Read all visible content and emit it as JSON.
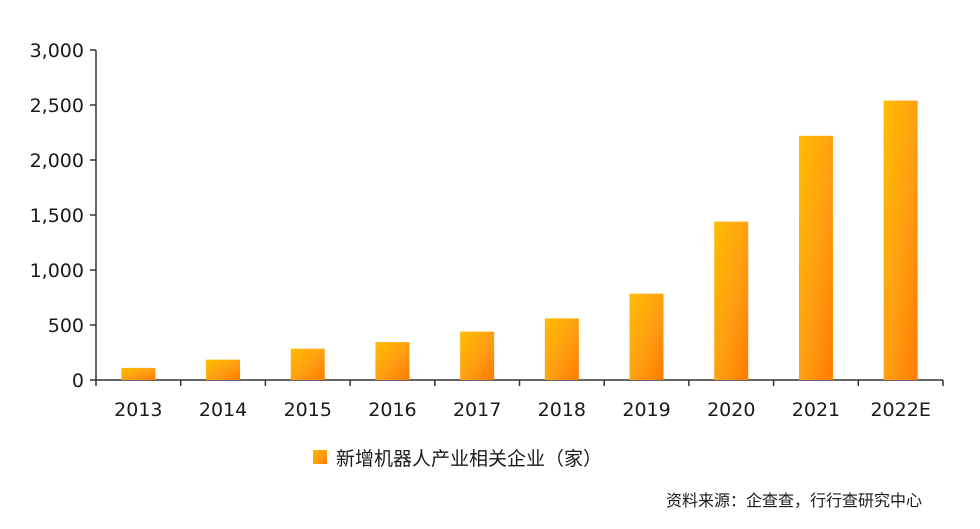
{
  "chart_data": {
    "type": "bar",
    "categories": [
      "2013",
      "2014",
      "2015",
      "2016",
      "2017",
      "2018",
      "2019",
      "2020",
      "2021",
      "2022E"
    ],
    "series": [
      {
        "name": "新增机器人产业相关企业（家）",
        "values": [
          110,
          185,
          285,
          345,
          440,
          560,
          785,
          1440,
          2220,
          2540
        ]
      }
    ],
    "ylim": [
      0,
      3000
    ],
    "yticks": [
      0,
      500,
      1000,
      1500,
      2000,
      2500,
      3000
    ],
    "ytick_labels": [
      "0",
      "500",
      "1,000",
      "1,500",
      "2,000",
      "2,500",
      "3,000"
    ],
    "grid": false,
    "legend_position": "bottom-center",
    "bar_color": "#FF9A10",
    "bar_gradient": [
      "#FFB800",
      "#FF7A00"
    ]
  },
  "legend": {
    "label": "新增机器人产业相关企业（家）"
  },
  "source": {
    "text": "资料来源：企查查，行行查研究中心"
  }
}
